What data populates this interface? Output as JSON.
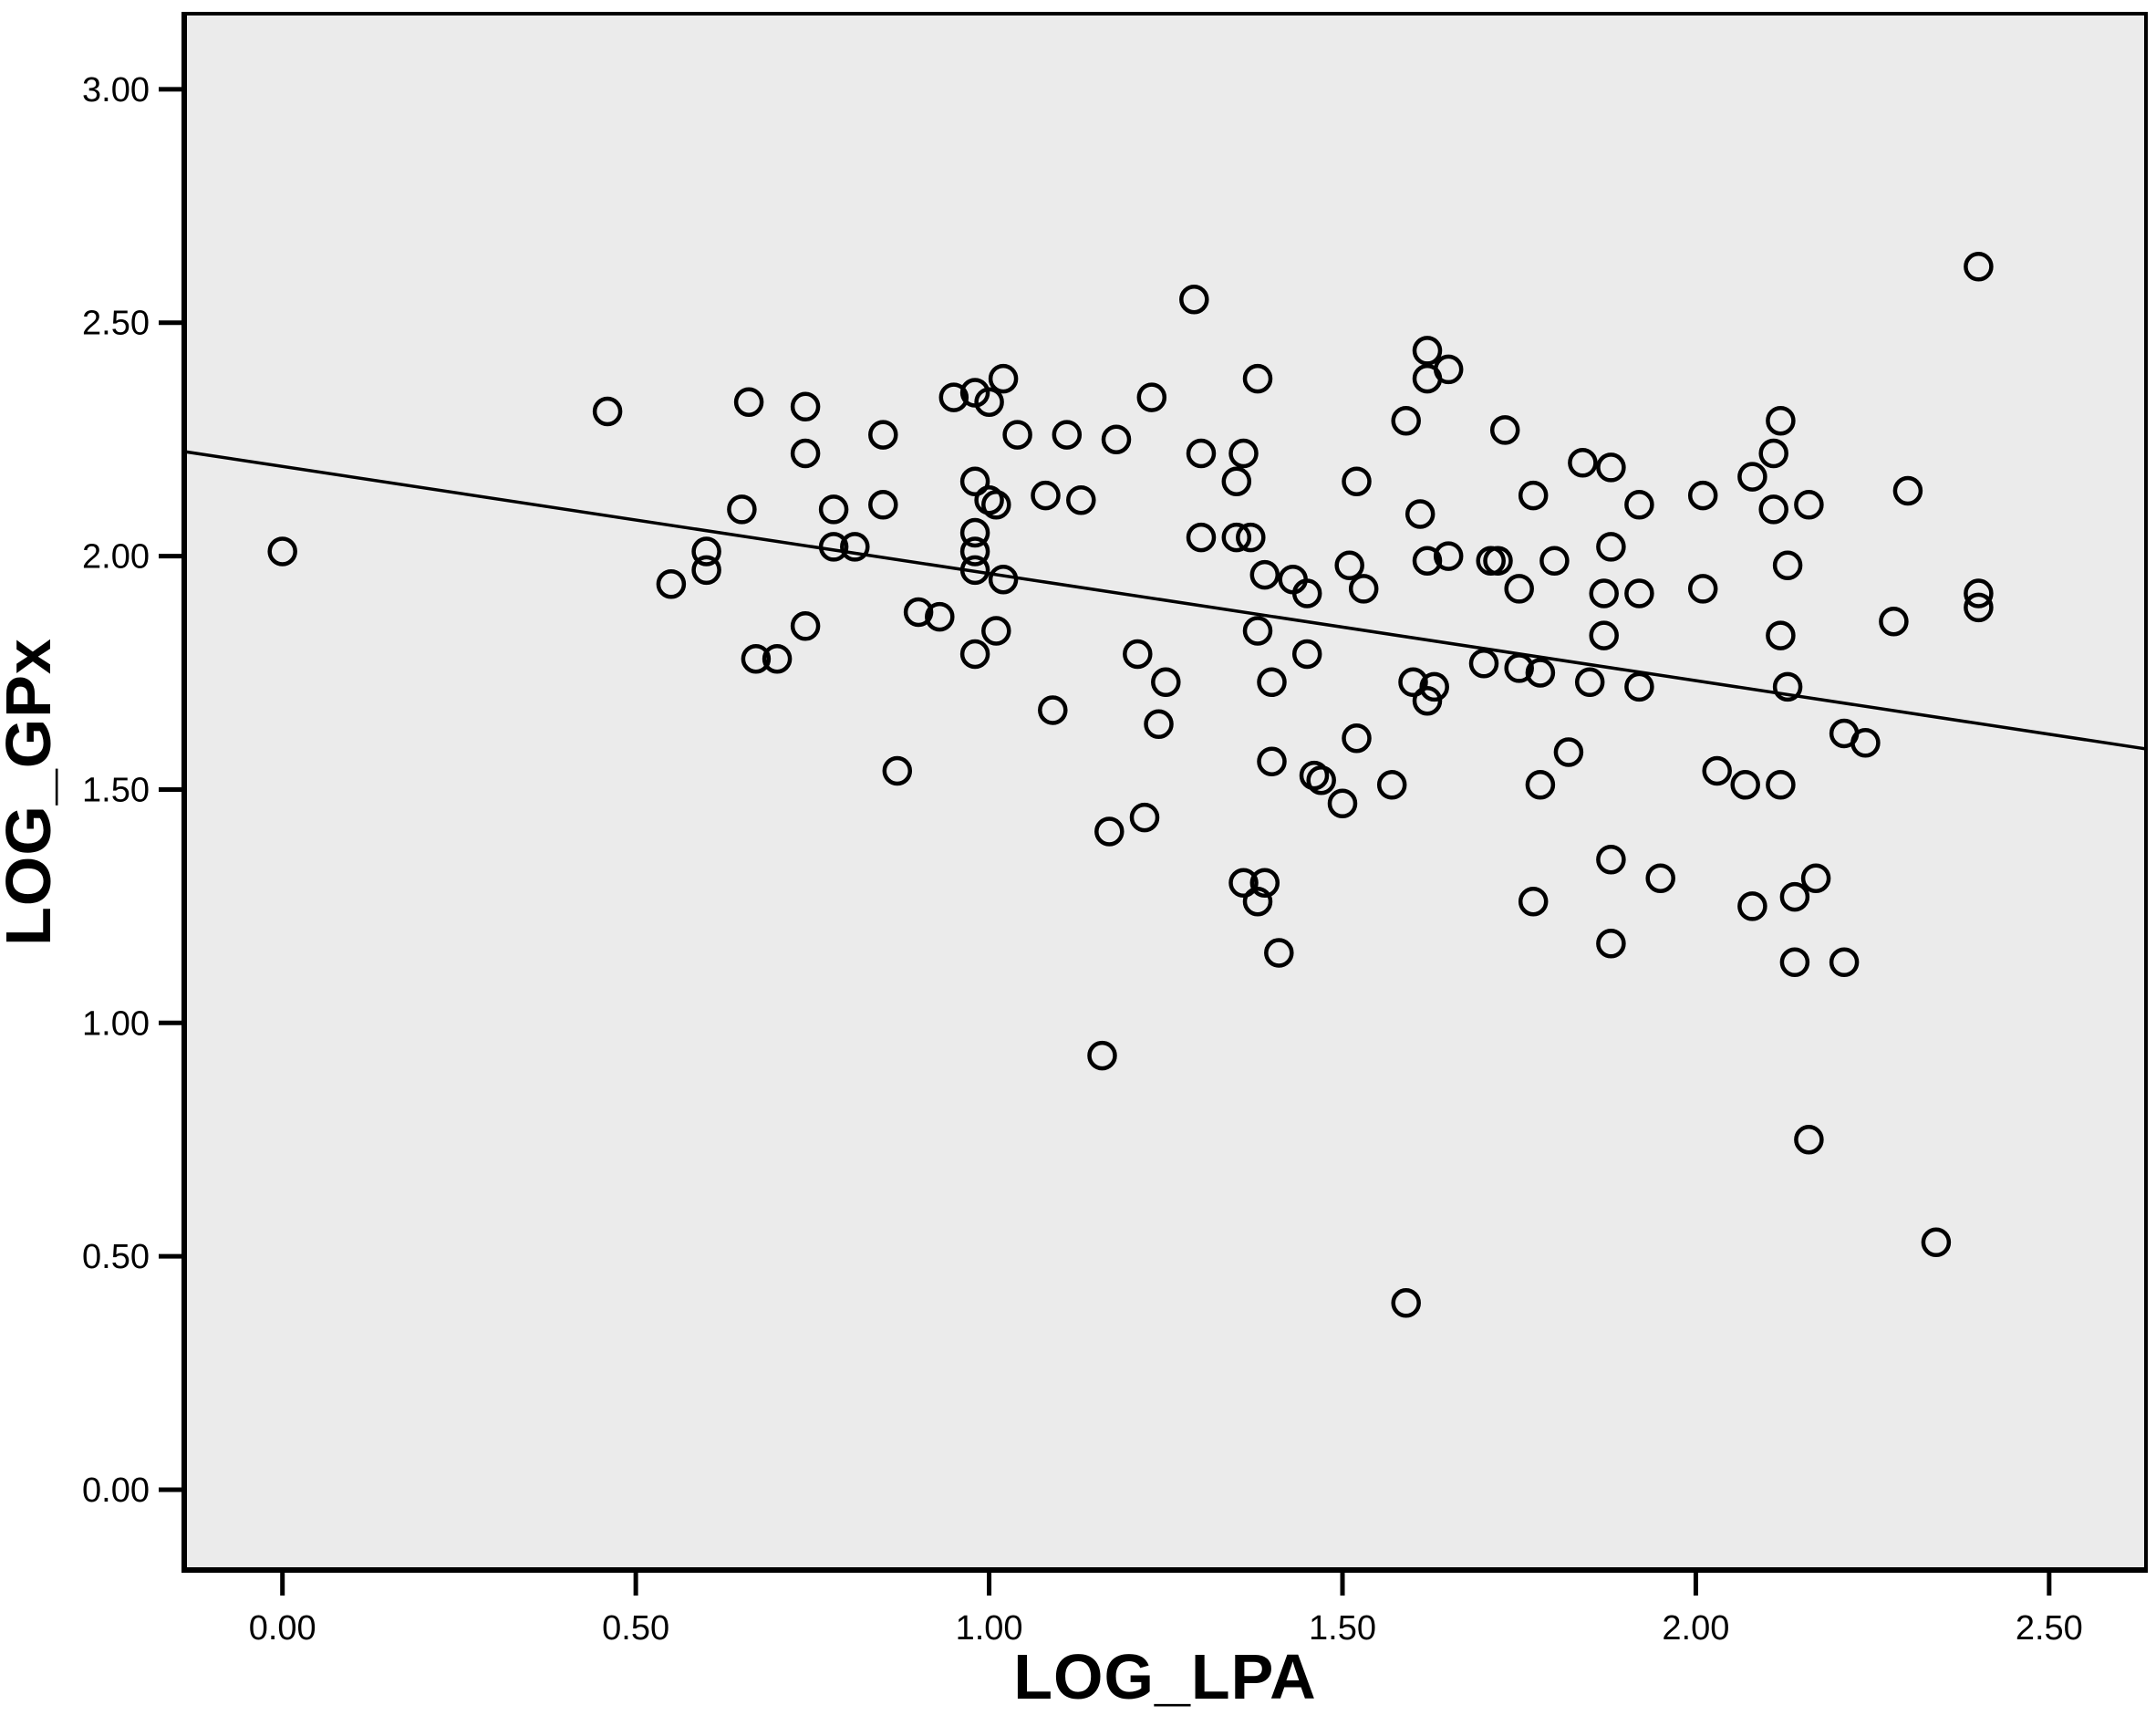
{
  "chart_data": {
    "type": "scatter",
    "title": "",
    "xlabel": "LOG_LPA",
    "ylabel": "LOG_GPx",
    "xlim": [
      -0.139,
      2.637
    ],
    "ylim": [
      -0.172,
      3.162
    ],
    "grid": false,
    "legend": "none",
    "x_ticks": {
      "values": [
        0.0,
        0.5,
        1.0,
        1.5,
        2.0,
        2.5
      ],
      "labels": [
        "0.00",
        "0.50",
        "1.00",
        "1.50",
        "2.00",
        "2.50"
      ]
    },
    "y_ticks": {
      "values": [
        0.0,
        0.5,
        1.0,
        1.5,
        2.0,
        2.5,
        3.0
      ],
      "labels": [
        "0.00",
        "0.50",
        "1.00",
        "1.50",
        "2.00",
        "2.50",
        "3.00"
      ]
    },
    "fit_line": {
      "x1": -0.139,
      "y1": 2.224,
      "x2": 2.637,
      "y2": 1.587
    },
    "marker": {
      "shape": "open-circle",
      "stroke": "#000000",
      "fill": "none",
      "radius_px": 14,
      "stroke_width_px": 4.5
    },
    "colors": {
      "page_bg": "#ffffff",
      "plot_bg": "#ebebeb",
      "axis": "#000000",
      "line": "#000000"
    },
    "points": [
      [
        0.0,
        2.01
      ],
      [
        0.46,
        2.31
      ],
      [
        0.55,
        1.94
      ],
      [
        0.6,
        2.01
      ],
      [
        0.6,
        1.97
      ],
      [
        0.65,
        2.1
      ],
      [
        0.66,
        2.33
      ],
      [
        0.67,
        1.78
      ],
      [
        0.7,
        1.78
      ],
      [
        0.74,
        2.32
      ],
      [
        0.74,
        2.22
      ],
      [
        0.74,
        1.85
      ],
      [
        0.78,
        2.1
      ],
      [
        0.78,
        2.02
      ],
      [
        0.81,
        2.02
      ],
      [
        0.85,
        2.26
      ],
      [
        0.85,
        2.11
      ],
      [
        0.87,
        1.54
      ],
      [
        0.9,
        1.88
      ],
      [
        0.93,
        1.87
      ],
      [
        0.95,
        2.34
      ],
      [
        0.98,
        2.35
      ],
      [
        0.98,
        2.16
      ],
      [
        0.98,
        2.05
      ],
      [
        0.98,
        2.01
      ],
      [
        0.98,
        1.97
      ],
      [
        0.98,
        1.79
      ],
      [
        1.0,
        2.33
      ],
      [
        1.0,
        2.12
      ],
      [
        1.01,
        2.11
      ],
      [
        1.01,
        1.84
      ],
      [
        1.02,
        2.38
      ],
      [
        1.02,
        1.95
      ],
      [
        1.04,
        2.26
      ],
      [
        1.08,
        2.13
      ],
      [
        1.09,
        1.67
      ],
      [
        1.11,
        2.26
      ],
      [
        1.13,
        2.12
      ],
      [
        1.16,
        0.93
      ],
      [
        1.17,
        1.41
      ],
      [
        1.18,
        2.25
      ],
      [
        1.21,
        1.79
      ],
      [
        1.22,
        1.44
      ],
      [
        1.23,
        2.34
      ],
      [
        1.24,
        1.64
      ],
      [
        1.25,
        1.73
      ],
      [
        1.29,
        2.55
      ],
      [
        1.3,
        2.22
      ],
      [
        1.3,
        2.04
      ],
      [
        1.35,
        2.16
      ],
      [
        1.35,
        2.04
      ],
      [
        1.36,
        2.22
      ],
      [
        1.37,
        2.04
      ],
      [
        1.36,
        1.3
      ],
      [
        1.38,
        2.38
      ],
      [
        1.38,
        1.84
      ],
      [
        1.38,
        1.26
      ],
      [
        1.39,
        1.96
      ],
      [
        1.39,
        1.3
      ],
      [
        1.4,
        1.73
      ],
      [
        1.4,
        1.56
      ],
      [
        1.41,
        1.15
      ],
      [
        1.43,
        1.95
      ],
      [
        1.45,
        1.92
      ],
      [
        1.45,
        1.79
      ],
      [
        1.46,
        1.53
      ],
      [
        1.47,
        1.52
      ],
      [
        1.5,
        1.47
      ],
      [
        1.51,
        1.98
      ],
      [
        1.52,
        2.16
      ],
      [
        1.52,
        1.61
      ],
      [
        1.53,
        1.93
      ],
      [
        1.57,
        1.51
      ],
      [
        1.59,
        2.29
      ],
      [
        1.59,
        0.4
      ],
      [
        1.6,
        1.73
      ],
      [
        1.61,
        2.09
      ],
      [
        1.62,
        2.44
      ],
      [
        1.62,
        2.38
      ],
      [
        1.62,
        1.99
      ],
      [
        1.62,
        1.69
      ],
      [
        1.63,
        1.72
      ],
      [
        1.65,
        2.4
      ],
      [
        1.65,
        2.0
      ],
      [
        1.7,
        1.77
      ],
      [
        1.71,
        1.99
      ],
      [
        1.72,
        1.99
      ],
      [
        1.73,
        2.27
      ],
      [
        1.75,
        1.76
      ],
      [
        1.75,
        1.93
      ],
      [
        1.77,
        2.13
      ],
      [
        1.77,
        1.26
      ],
      [
        1.78,
        1.75
      ],
      [
        1.78,
        1.51
      ],
      [
        1.8,
        1.99
      ],
      [
        1.82,
        1.58
      ],
      [
        1.84,
        2.2
      ],
      [
        1.85,
        1.73
      ],
      [
        1.87,
        1.83
      ],
      [
        1.87,
        1.92
      ],
      [
        1.88,
        2.19
      ],
      [
        1.88,
        2.02
      ],
      [
        1.88,
        1.35
      ],
      [
        1.88,
        1.17
      ],
      [
        1.92,
        2.11
      ],
      [
        1.92,
        1.92
      ],
      [
        1.92,
        1.72
      ],
      [
        1.95,
        1.31
      ],
      [
        2.01,
        2.13
      ],
      [
        2.01,
        1.93
      ],
      [
        2.03,
        1.54
      ],
      [
        2.07,
        1.51
      ],
      [
        2.08,
        2.17
      ],
      [
        2.08,
        1.25
      ],
      [
        2.11,
        2.22
      ],
      [
        2.11,
        2.1
      ],
      [
        2.12,
        2.29
      ],
      [
        2.12,
        1.83
      ],
      [
        2.12,
        1.51
      ],
      [
        2.13,
        1.98
      ],
      [
        2.13,
        1.72
      ],
      [
        2.14,
        1.27
      ],
      [
        2.14,
        1.13
      ],
      [
        2.16,
        2.11
      ],
      [
        2.16,
        0.75
      ],
      [
        2.17,
        1.31
      ],
      [
        2.21,
        1.62
      ],
      [
        2.21,
        1.13
      ],
      [
        2.24,
        1.6
      ],
      [
        2.28,
        1.86
      ],
      [
        2.3,
        2.14
      ],
      [
        2.34,
        0.53
      ],
      [
        2.4,
        2.62
      ],
      [
        2.4,
        1.92
      ],
      [
        2.4,
        1.89
      ]
    ]
  }
}
